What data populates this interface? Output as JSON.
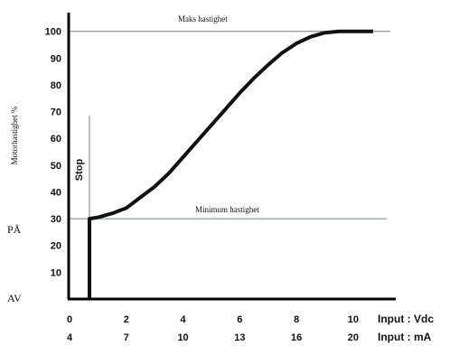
{
  "chart_data": {
    "type": "line",
    "ylabel": "Motorhastighet %",
    "y_ticks": [
      10,
      20,
      30,
      40,
      50,
      60,
      70,
      80,
      90,
      100
    ],
    "ylim": [
      0,
      107
    ],
    "x_ticks_vdc": [
      0,
      2,
      4,
      6,
      8,
      10
    ],
    "x_ticks_ma": [
      4,
      7,
      10,
      13,
      16,
      20
    ],
    "xlim_vdc": [
      0,
      11.5
    ],
    "input_vdc_label": "Input : Vdc",
    "input_ma_label": "Input : mA",
    "state_labels": {
      "on": "PÅ",
      "off": "AV"
    },
    "annotations": {
      "max": "Maks hastighet",
      "min": "Minimum hastighet",
      "stop": "Stop"
    },
    "reference_lines": {
      "max": 100,
      "min": 30,
      "stop_x": 0.7
    },
    "series": [
      {
        "points": [
          [
            0.7,
            0
          ],
          [
            0.7,
            30
          ],
          [
            1,
            30.5
          ],
          [
            1.5,
            32
          ],
          [
            2,
            34
          ],
          [
            2.5,
            38
          ],
          [
            3,
            42
          ],
          [
            3.5,
            47
          ],
          [
            4,
            53
          ],
          [
            4.5,
            59
          ],
          [
            5,
            65
          ],
          [
            5.5,
            71
          ],
          [
            6,
            77
          ],
          [
            6.5,
            82.5
          ],
          [
            7,
            87.5
          ],
          [
            7.5,
            92
          ],
          [
            8,
            95.5
          ],
          [
            8.5,
            98
          ],
          [
            9,
            99.5
          ],
          [
            9.5,
            100
          ],
          [
            10.7,
            100
          ]
        ]
      }
    ],
    "grid": false
  }
}
